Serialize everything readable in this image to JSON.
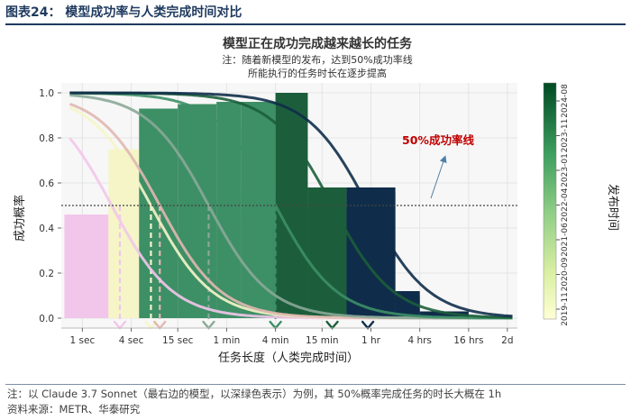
{
  "header": {
    "title": "图表24：   模型成功率与人类完成时间对比"
  },
  "footer": {
    "note": "注：以 Claude 3.7 Sonnet（最右边的模型，以深绿色表示）为例，其 50%概率完成任务的时长大概在 1h",
    "source": "资料来源：METR、华泰研究"
  },
  "chart_data": {
    "type": "line",
    "title": "模型正在成功完成越来越长的任务",
    "subtitle_lines": [
      "注：随着新模型的发布，达到50%成功率线",
      "所能执行的任务时长在逐步提高"
    ],
    "xlabel": "任务长度（人类完成时间）",
    "ylabel": "成功概率",
    "x_scale": "log",
    "x_ticks": [
      {
        "label": "1 sec",
        "seconds": 1
      },
      {
        "label": "4 sec",
        "seconds": 4
      },
      {
        "label": "15 sec",
        "seconds": 15
      },
      {
        "label": "1 min",
        "seconds": 60
      },
      {
        "label": "4 min",
        "seconds": 240
      },
      {
        "label": "15 min",
        "seconds": 900
      },
      {
        "label": "1 hr",
        "seconds": 3600
      },
      {
        "label": "4 hrs",
        "seconds": 14400
      },
      {
        "label": "16 hrs",
        "seconds": 57600
      },
      {
        "label": "2d",
        "seconds": 172800
      }
    ],
    "y_ticks": [
      "0.0",
      "0.2",
      "0.4",
      "0.6",
      "0.8",
      "1.0"
    ],
    "ylim": [
      0,
      1
    ],
    "threshold": 0.5,
    "annotation": "50%成功率线",
    "colorbar": {
      "title": "发布时间",
      "labels": [
        "2019-11",
        "2020-09",
        "2021-06",
        "2022-04",
        "2023-01",
        "2023-11",
        "2024-08"
      ],
      "color_low": "#ffffd4",
      "color_high": "#004a23"
    },
    "series": [
      {
        "color": "#f2c6ea",
        "mid_seconds": 2.3,
        "marker_seconds": 2.9,
        "steps": [
          [
            0.6,
            2.1,
            0.46
          ],
          [
            2.1,
            5,
            0.46
          ],
          [
            5,
            15,
            0.46
          ],
          [
            15,
            45,
            0.1
          ],
          [
            45,
            90,
            0.04
          ],
          [
            90,
            600,
            0.01
          ]
        ]
      },
      {
        "color": "#f5f5c8",
        "mid_seconds": 7,
        "marker_seconds": 7,
        "steps": [
          [
            2.1,
            5,
            0.75
          ],
          [
            5,
            15,
            0.73
          ],
          [
            15,
            45,
            0.21
          ],
          [
            45,
            90,
            0.06
          ]
        ]
      },
      {
        "color": "#e0b8b0",
        "mid_seconds": 9,
        "marker_seconds": 9,
        "steps": [
          [
            15,
            45,
            0.43
          ],
          [
            45,
            90,
            0.45
          ],
          [
            90,
            240,
            0.2
          ]
        ]
      },
      {
        "color": "#8aa898",
        "mid_seconds": 36,
        "marker_seconds": 36,
        "steps": [
          [
            45,
            90,
            0.85
          ],
          [
            90,
            240,
            0.58
          ],
          [
            240,
            600,
            0.35
          ],
          [
            600,
            1800,
            0.08
          ]
        ]
      },
      {
        "color": "#3d8f66",
        "mid_seconds": 240,
        "marker_seconds": 240,
        "steps": [
          [
            5,
            15,
            0.93
          ],
          [
            15,
            45,
            0.95
          ],
          [
            45,
            90,
            0.96
          ],
          [
            90,
            240,
            0.96
          ],
          [
            240,
            600,
            0.49
          ],
          [
            600,
            1800,
            0.5
          ],
          [
            1800,
            7200,
            0.05
          ]
        ]
      },
      {
        "color": "#1c5e3b",
        "mid_seconds": 1200,
        "marker_seconds": 1200,
        "steps": [
          [
            240,
            600,
            1.0
          ],
          [
            600,
            1800,
            0.58
          ],
          [
            1800,
            7200,
            0.56
          ],
          [
            7200,
            14400,
            0.1
          ]
        ]
      },
      {
        "color": "#0f2d4a",
        "mid_seconds": 3300,
        "marker_seconds": 3300,
        "steps": [
          [
            1800,
            7200,
            0.58
          ],
          [
            7200,
            14400,
            0.12
          ],
          [
            14400,
            57600,
            0.03
          ]
        ]
      }
    ]
  }
}
